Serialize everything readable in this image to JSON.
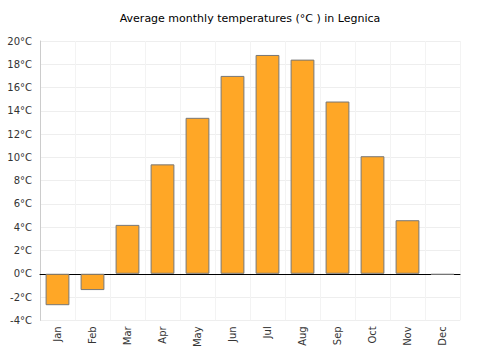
{
  "chart_data": {
    "type": "bar",
    "title": "Average monthly temperatures (°C ) in Legnica",
    "categories": [
      "Jan",
      "Feb",
      "Mar",
      "Apr",
      "May",
      "Jun",
      "Jul",
      "Aug",
      "Sep",
      "Oct",
      "Nov",
      "Dec"
    ],
    "values": [
      -2.7,
      -1.4,
      4.2,
      9.4,
      13.4,
      17.0,
      18.8,
      18.4,
      14.8,
      10.1,
      4.6,
      -0.1
    ],
    "color": "#ffa726",
    "ylim": [
      -4,
      20
    ],
    "yticks": [
      {
        "value": -4,
        "label": "-4°C"
      },
      {
        "value": -2,
        "label": "-2°C"
      },
      {
        "value": 0,
        "label": "0°C"
      },
      {
        "value": 2,
        "label": "2°C"
      },
      {
        "value": 4,
        "label": "4°C"
      },
      {
        "value": 6,
        "label": "6°C"
      },
      {
        "value": 8,
        "label": "8°C"
      },
      {
        "value": 10,
        "label": "10°C"
      },
      {
        "value": 12,
        "label": "12°C"
      },
      {
        "value": 14,
        "label": "14°C"
      },
      {
        "value": 16,
        "label": "16°C"
      },
      {
        "value": 18,
        "label": "18°C"
      },
      {
        "value": 20,
        "label": "20°C"
      }
    ],
    "grid": true
  }
}
